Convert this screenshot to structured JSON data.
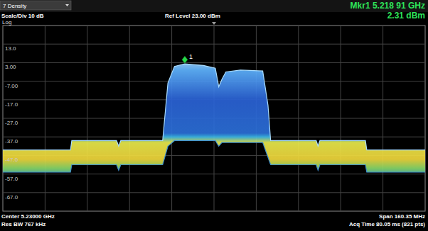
{
  "chart_data": {
    "type": "line",
    "mode_label": "7 Density",
    "scale_label": "Scale/Div 10 dB",
    "ref_label": "Ref Level 23.00 dBm",
    "y_label": "Log",
    "marker_readout": [
      "Mkr1 5.218 91 GHz",
      "2.31 dBm"
    ],
    "footer_left": [
      "Center 5.23000 GHz",
      "Res BW 767 kHz"
    ],
    "footer_right": [
      "Span 160.35 MHz",
      "Acq Time 80.05 ms (821 pts)"
    ],
    "x": [
      5.149825,
      5.1755,
      5.176,
      5.193,
      5.1938,
      5.1946,
      5.2105,
      5.2125,
      5.215,
      5.21891,
      5.226,
      5.2305,
      5.2318,
      5.233,
      5.2345,
      5.24,
      5.2485,
      5.2505,
      5.2515,
      5.2688,
      5.2695,
      5.2702,
      5.2875,
      5.288,
      5.310175
    ],
    "series": [
      {
        "color": "#a8dcff",
        "values": [
          -44,
          -44,
          -39,
          -39,
          -42,
          -39,
          -39,
          -8,
          1,
          2.31,
          1.5,
          0,
          -10,
          -6,
          -2,
          -1,
          -1.5,
          -20,
          -39,
          -39,
          -42,
          -39,
          -39,
          -44,
          -44
        ]
      },
      {
        "color": "#3d8fd0",
        "values": [
          -56,
          -56,
          -52,
          -52,
          -55,
          -52,
          -52,
          -42,
          -39,
          -39,
          -39,
          -39,
          -42,
          -40,
          -40,
          -40,
          -40,
          -48,
          -52,
          -52,
          -55,
          -52,
          -52,
          -56,
          -56
        ]
      }
    ],
    "xlim": [
      5.149825,
      5.310175
    ],
    "xticks": [
      5.16586,
      5.181895,
      5.19793,
      5.213965,
      5.23,
      5.246035,
      5.26207,
      5.278105,
      5.29414
    ],
    "ylim": [
      -77,
      23
    ],
    "yticks": [
      {
        "value": 13,
        "label": "13.0"
      },
      {
        "value": 3,
        "label": "3.00"
      },
      {
        "value": -7,
        "label": "-7.00"
      },
      {
        "value": -17,
        "label": "-17.0"
      },
      {
        "value": -27,
        "label": "-27.0"
      },
      {
        "value": -37,
        "label": "-37.0"
      },
      {
        "value": -47,
        "label": "-47.0"
      },
      {
        "value": -57,
        "label": "-57.0"
      },
      {
        "value": -67,
        "label": "-67.0"
      }
    ],
    "grid": true,
    "tick_labels": "y",
    "annotations": [
      {
        "x": 5.21891,
        "y": 2.31,
        "text": "1"
      }
    ]
  }
}
